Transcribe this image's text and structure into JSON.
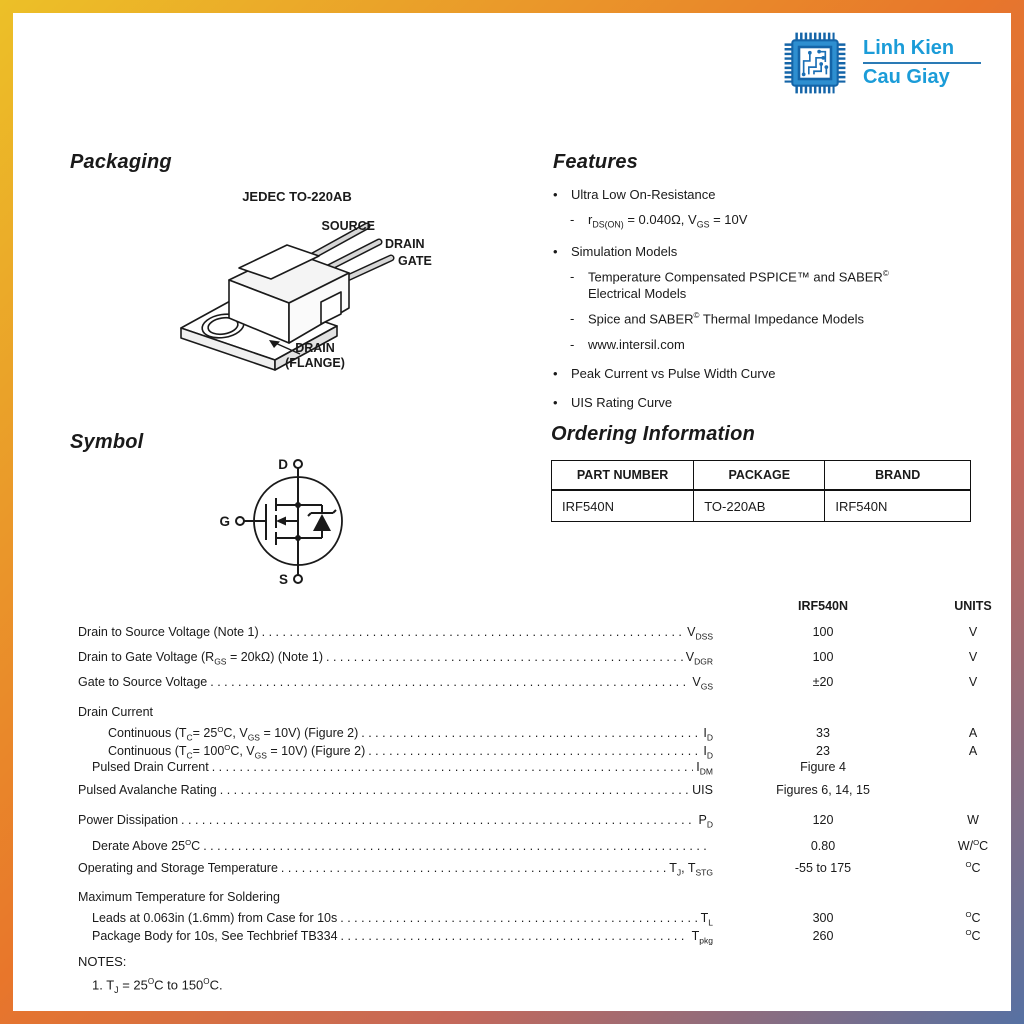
{
  "colors": {
    "accent_blue": "#1b9cd8",
    "border_yellow": "#ecc028",
    "border_orange": "#e8762b",
    "border_blue": "#5671a3"
  },
  "logo": {
    "line1": "Linh Kien",
    "line2": "Cau Giay",
    "icon": "chip-logo-icon"
  },
  "packaging": {
    "title": "Packaging",
    "jedec": "JEDEC TO-220AB",
    "labels": {
      "source": "SOURCE",
      "drain": "DRAIN",
      "gate": "GATE",
      "flange1": "DRAIN",
      "flange2": "(FLANGE)"
    }
  },
  "features": {
    "title": "Features",
    "items": [
      {
        "lvl": 0,
        "text": "Ultra Low On-Resistance"
      },
      {
        "lvl": 1,
        "text": "r~DS(ON)~ = 0.040Ω, V~GS~ = 10V"
      },
      {
        "lvl": 0,
        "text": "Simulation Models"
      },
      {
        "lvl": 1,
        "text": "Temperature Compensated PSPICE™ and SABER^©^\nElectrical Models"
      },
      {
        "lvl": 1,
        "text": "Spice and SABER^©^ Thermal Impedance Models"
      },
      {
        "lvl": 1,
        "text": "www.intersil.com"
      },
      {
        "lvl": 0,
        "text": "Peak Current vs Pulse Width Curve"
      },
      {
        "lvl": 0,
        "text": "UIS Rating Curve"
      }
    ]
  },
  "symbol": {
    "title": "Symbol",
    "terminals": {
      "d": "D",
      "g": "G",
      "s": "S"
    }
  },
  "ordering": {
    "title": "Ordering Information",
    "headers": [
      "PART NUMBER",
      "PACKAGE",
      "BRAND"
    ],
    "rows": [
      [
        "IRF540N",
        "TO-220AB",
        "IRF540N"
      ]
    ]
  },
  "ratings": {
    "col_device": "IRF540N",
    "col_units": "UNITS",
    "rows": [
      {
        "label": "Drain to Source Voltage (Note 1)",
        "sym": "V~DSS~",
        "val": "100",
        "unit": "V",
        "ind": 0,
        "dots": true
      },
      {
        "label": "Drain to Gate Voltage (R~GS~ = 20kΩ) (Note 1)",
        "sym": "V~DGR~",
        "val": "100",
        "unit": "V",
        "ind": 0,
        "dots": true
      },
      {
        "label": "Gate to Source Voltage",
        "sym": "V~GS~",
        "val": "±20",
        "unit": "V",
        "ind": 0,
        "dots": true
      },
      {
        "label": "Drain Current",
        "sym": "",
        "val": "",
        "unit": "",
        "ind": 0,
        "dots": false,
        "grp": true,
        "sp": true
      },
      {
        "label": "Continuous (T~C~= 25^O^C, V~GS~ = 10V) (Figure 2)",
        "sym": "I~D~",
        "val": "33",
        "unit": "A",
        "ind": 2,
        "dots": true,
        "sub": true
      },
      {
        "label": "Continuous (T~C~= 100^O^C, V~GS~ = 10V) (Figure 2)",
        "sym": "I~D~",
        "val": "23",
        "unit": "A",
        "ind": 2,
        "dots": true,
        "sub": true
      },
      {
        "label": "Pulsed Drain Current",
        "sym": "I~DM~",
        "val": "Figure 4",
        "unit": "",
        "ind": 1,
        "dots": true,
        "sub": true
      },
      {
        "label": "Pulsed Avalanche Rating",
        "sym": "UIS",
        "val": "Figures 6, 14, 15",
        "unit": "",
        "ind": 0,
        "dots": true,
        "sp": true
      },
      {
        "label": "Power Dissipation",
        "sym": "P~D~",
        "val": "120",
        "unit": "W",
        "ind": 0,
        "dots": true,
        "sp": true
      },
      {
        "label": "Derate Above 25^O^C",
        "sym": "",
        "val": "0.80",
        "unit": "W/^O^C",
        "ind": 1,
        "dots": true,
        "sub": true
      },
      {
        "label": "Operating and Storage Temperature",
        "sym": "T~J~, T~STG~",
        "val": "-55 to 175",
        "unit": "^O^C",
        "ind": 0,
        "dots": true,
        "sp": true
      },
      {
        "label": "Maximum Temperature for Soldering",
        "sym": "",
        "val": "",
        "unit": "",
        "ind": 0,
        "dots": false,
        "grp": true,
        "sp": true
      },
      {
        "label": "Leads at 0.063in (1.6mm) from Case for 10s",
        "sym": "T~L~",
        "val": "300",
        "unit": "^O^C",
        "ind": 1,
        "dots": true,
        "sub": true
      },
      {
        "label": "Package Body for 10s, See Techbrief TB334",
        "sym": "T~pkg~",
        "val": "260",
        "unit": "^O^C",
        "ind": 1,
        "dots": true,
        "sub": true
      }
    ]
  },
  "notes": {
    "title": "NOTES:",
    "items": [
      "1.  T~J~ = 25^O^C to 150^O^C."
    ]
  }
}
